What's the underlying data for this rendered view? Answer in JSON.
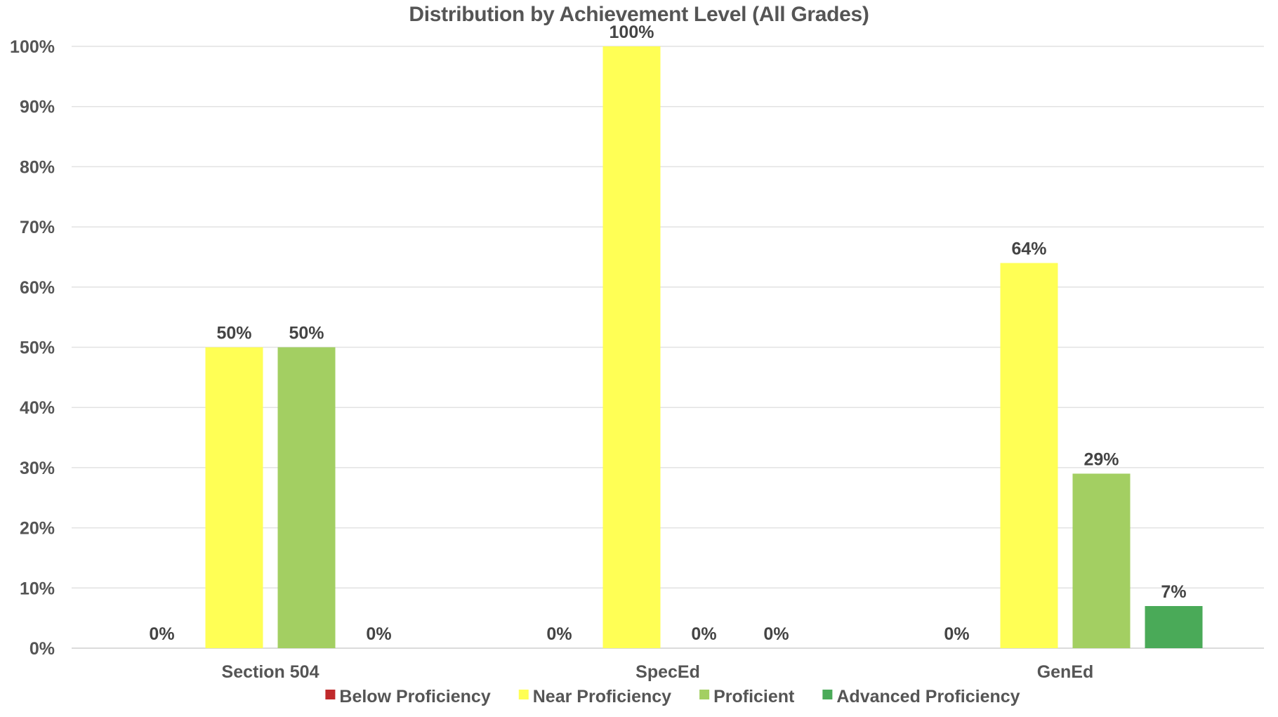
{
  "chart_data": {
    "type": "bar",
    "title": "Distribution by Achievement Level (All Grades)",
    "xlabel": "",
    "ylabel": "",
    "ylim": [
      0,
      100
    ],
    "y_ticks": [
      "0%",
      "10%",
      "20%",
      "30%",
      "40%",
      "50%",
      "60%",
      "70%",
      "80%",
      "90%",
      "100%"
    ],
    "grid": true,
    "legend_position": "bottom",
    "categories": [
      "Section 504",
      "SpecEd",
      "GenEd"
    ],
    "series": [
      {
        "name": "Below Proficiency",
        "color": "#c0292b",
        "values": [
          0,
          0,
          0
        ],
        "labels": [
          "0%",
          "0%",
          "0%"
        ]
      },
      {
        "name": "Near Proficiency",
        "color": "#ffff55",
        "values": [
          50,
          100,
          64
        ],
        "labels": [
          "50%",
          "100%",
          "64%"
        ]
      },
      {
        "name": "Proficient",
        "color": "#a3cf62",
        "values": [
          50,
          0,
          29
        ],
        "labels": [
          "50%",
          "0%",
          "29%"
        ]
      },
      {
        "name": "Advanced Proficiency",
        "color": "#4aaa58",
        "values": [
          0,
          0,
          7
        ],
        "labels": [
          "0%",
          "0%",
          "7%"
        ]
      }
    ]
  }
}
